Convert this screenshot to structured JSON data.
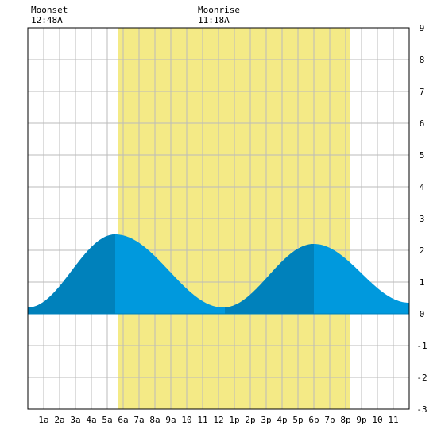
{
  "chart_data": {
    "type": "area",
    "title": "",
    "xlabel": "",
    "ylabel": "",
    "x_ticks": [
      "1a",
      "2a",
      "3a",
      "4a",
      "5a",
      "6a",
      "7a",
      "8a",
      "9a",
      "10",
      "11",
      "12",
      "1p",
      "2p",
      "3p",
      "4p",
      "5p",
      "6p",
      "7p",
      "8p",
      "9p",
      "10",
      "11"
    ],
    "y_ticks": [
      "9",
      "8",
      "7",
      "6",
      "5",
      "4",
      "3",
      "2",
      "1",
      "0",
      "-1",
      "-2",
      "-3"
    ],
    "xlim": [
      0,
      24
    ],
    "ylim": [
      -3,
      9
    ],
    "daylight": {
      "start_hour": 5.65,
      "end_hour": 20.25
    },
    "tide_series": {
      "name": "",
      "x": [
        0,
        5.5,
        12.3,
        18.0,
        24
      ],
      "y": [
        0.2,
        2.5,
        0.2,
        2.2,
        0.35
      ]
    },
    "highlight_ranges": [
      [
        0,
        5.5
      ],
      [
        12.4,
        18.0
      ]
    ],
    "moon_events": [
      {
        "label": "Moonset",
        "time": "12:48A",
        "hour": 0.8
      },
      {
        "label": "Moonrise",
        "time": "11:18A",
        "hour": 11.3
      }
    ],
    "grid": true,
    "colors": {
      "daylight": "#f4ea86",
      "tide": "#0099dd",
      "tide_highlight": "#0081bb",
      "grid": "#bbbbbb",
      "border": "#000000"
    }
  }
}
